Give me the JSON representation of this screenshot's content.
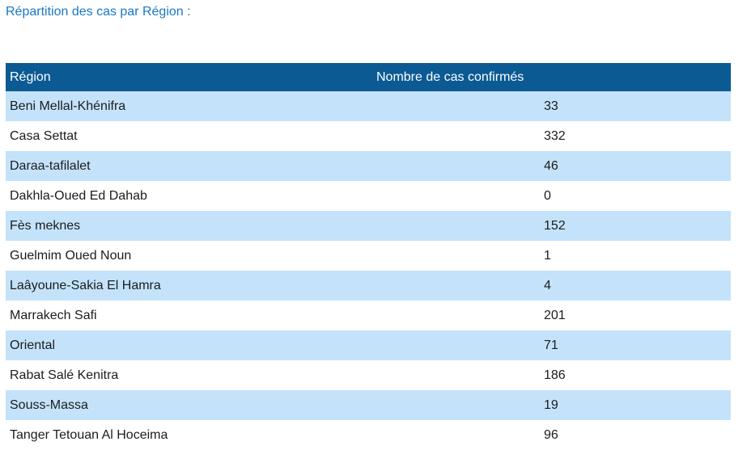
{
  "heading": "Répartition des cas par Région :",
  "table": {
    "headers": [
      "Région",
      "Nombre de cas confirmés"
    ],
    "rows": [
      {
        "region": "Beni Mellal-Khénifra",
        "cases": "33"
      },
      {
        "region": "Casa Settat",
        "cases": "332"
      },
      {
        "region": "Daraa-tafilalet",
        "cases": "46"
      },
      {
        "region": "Dakhla-Oued Ed Dahab",
        "cases": "0"
      },
      {
        "region": "Fès meknes",
        "cases": "152"
      },
      {
        "region": "Guelmim Oued Noun",
        "cases": "1"
      },
      {
        "region": "Laâyoune-Sakia El Hamra",
        "cases": "4"
      },
      {
        "region": "Marrakech Safi",
        "cases": "201"
      },
      {
        "region": "Oriental",
        "cases": "71"
      },
      {
        "region": "Rabat Salé Kenitra",
        "cases": "186"
      },
      {
        "region": "Souss-Massa",
        "cases": "19"
      },
      {
        "region": "Tanger Tetouan Al Hoceima",
        "cases": "96"
      }
    ]
  },
  "colors": {
    "heading": "#1a78c2",
    "header_bg": "#0b5a94",
    "row_stripe": "#c4e3fb"
  }
}
